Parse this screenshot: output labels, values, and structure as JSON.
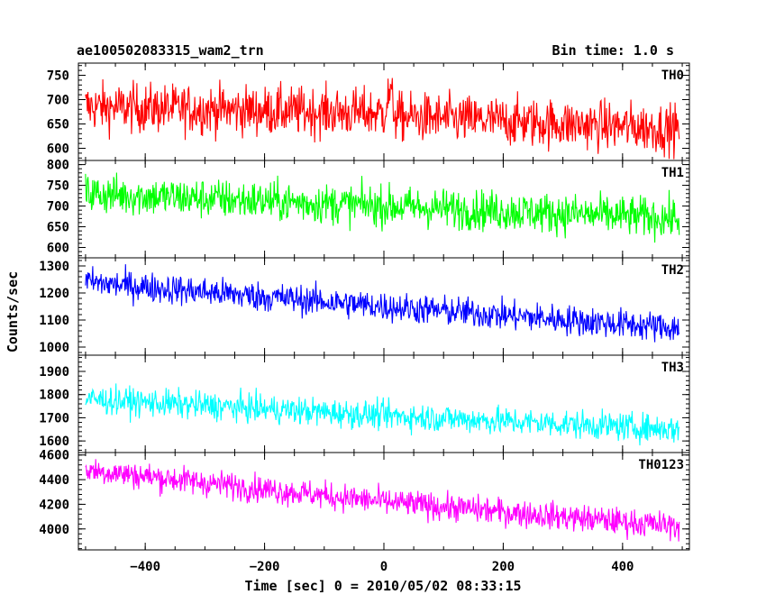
{
  "header": {
    "left_title": "ae100502083315_wam2_trn",
    "right_title": "Bin time: 1.0 s"
  },
  "axes": {
    "xlabel": "Time [sec] 0 = 2010/05/02 08:33:15",
    "ylabel": "Counts/sec"
  },
  "chart_data": {
    "type": "line",
    "layout": "stacked panels sharing x axis",
    "x_range": [
      -512,
      512
    ],
    "x_ticks": [
      -400,
      -200,
      0,
      200,
      400
    ],
    "x_ticks_text": [
      "−400",
      "−200",
      "0",
      "200",
      "400"
    ],
    "data_x_range": [
      -500,
      495
    ],
    "bin_time_s": 1.0,
    "grid": false,
    "panels": [
      {
        "name": "TH0",
        "color": "#ff0000",
        "ylim": [
          575,
          775
        ],
        "yticks": [
          600,
          650,
          700,
          750
        ],
        "trend": [
          [
            -500,
            685
          ],
          [
            0,
            672
          ],
          [
            10,
            715
          ],
          [
            20,
            665
          ],
          [
            495,
            640
          ]
        ],
        "noise": 50
      },
      {
        "name": "TH1",
        "color": "#00ff00",
        "ylim": [
          575,
          810
        ],
        "yticks": [
          600,
          650,
          700,
          750,
          800
        ],
        "trend": [
          [
            -500,
            730
          ],
          [
            0,
            700
          ],
          [
            495,
            670
          ]
        ],
        "noise": 48
      },
      {
        "name": "TH2",
        "color": "#0000ff",
        "ylim": [
          970,
          1330
        ],
        "yticks": [
          1000,
          1100,
          1200,
          1300
        ],
        "trend": [
          [
            -500,
            1240
          ],
          [
            0,
            1150
          ],
          [
            495,
            1070
          ]
        ],
        "noise": 55
      },
      {
        "name": "TH3",
        "color": "#00ffff",
        "ylim": [
          1550,
          1970
        ],
        "yticks": [
          1600,
          1700,
          1800,
          1900
        ],
        "trend": [
          [
            -500,
            1780
          ],
          [
            0,
            1710
          ],
          [
            495,
            1650
          ]
        ],
        "noise": 60
      },
      {
        "name": "TH0123",
        "color": "#ff00ff",
        "ylim": [
          3830,
          4620
        ],
        "yticks": [
          4000,
          4200,
          4400,
          4600
        ],
        "trend": [
          [
            -500,
            4480
          ],
          [
            0,
            4220
          ],
          [
            495,
            4020
          ]
        ],
        "noise": 110
      }
    ]
  }
}
